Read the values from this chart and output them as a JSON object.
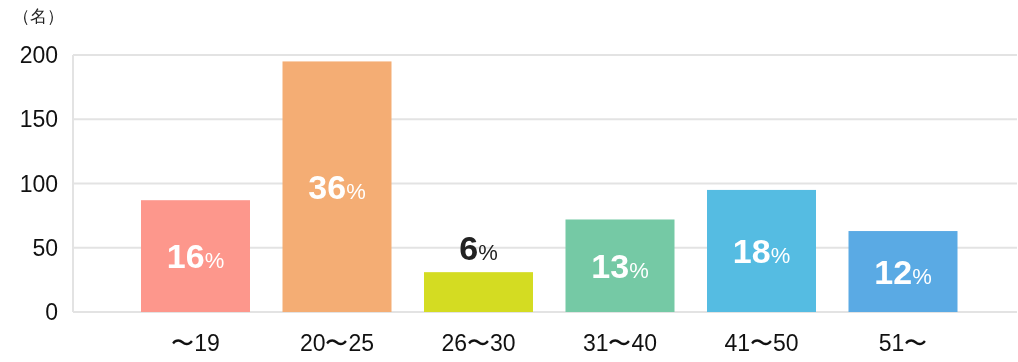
{
  "chart_data": {
    "type": "bar",
    "ylabel": "（名）",
    "categories": [
      "〜19",
      "20〜25",
      "26〜30",
      "31〜40",
      "41〜50",
      "51〜"
    ],
    "values": [
      87,
      195,
      31,
      72,
      95,
      63
    ],
    "colors": [
      "#fd978c",
      "#f4ad74",
      "#d4dc22",
      "#75c9a5",
      "#55bce2",
      "#5aaae4"
    ],
    "annotations": [
      "16%",
      "36%",
      "6%",
      "13%",
      "18%",
      "12%"
    ],
    "ylim": [
      0,
      200
    ],
    "yticks": [
      0,
      50,
      100,
      150,
      200
    ],
    "grid": "y"
  }
}
